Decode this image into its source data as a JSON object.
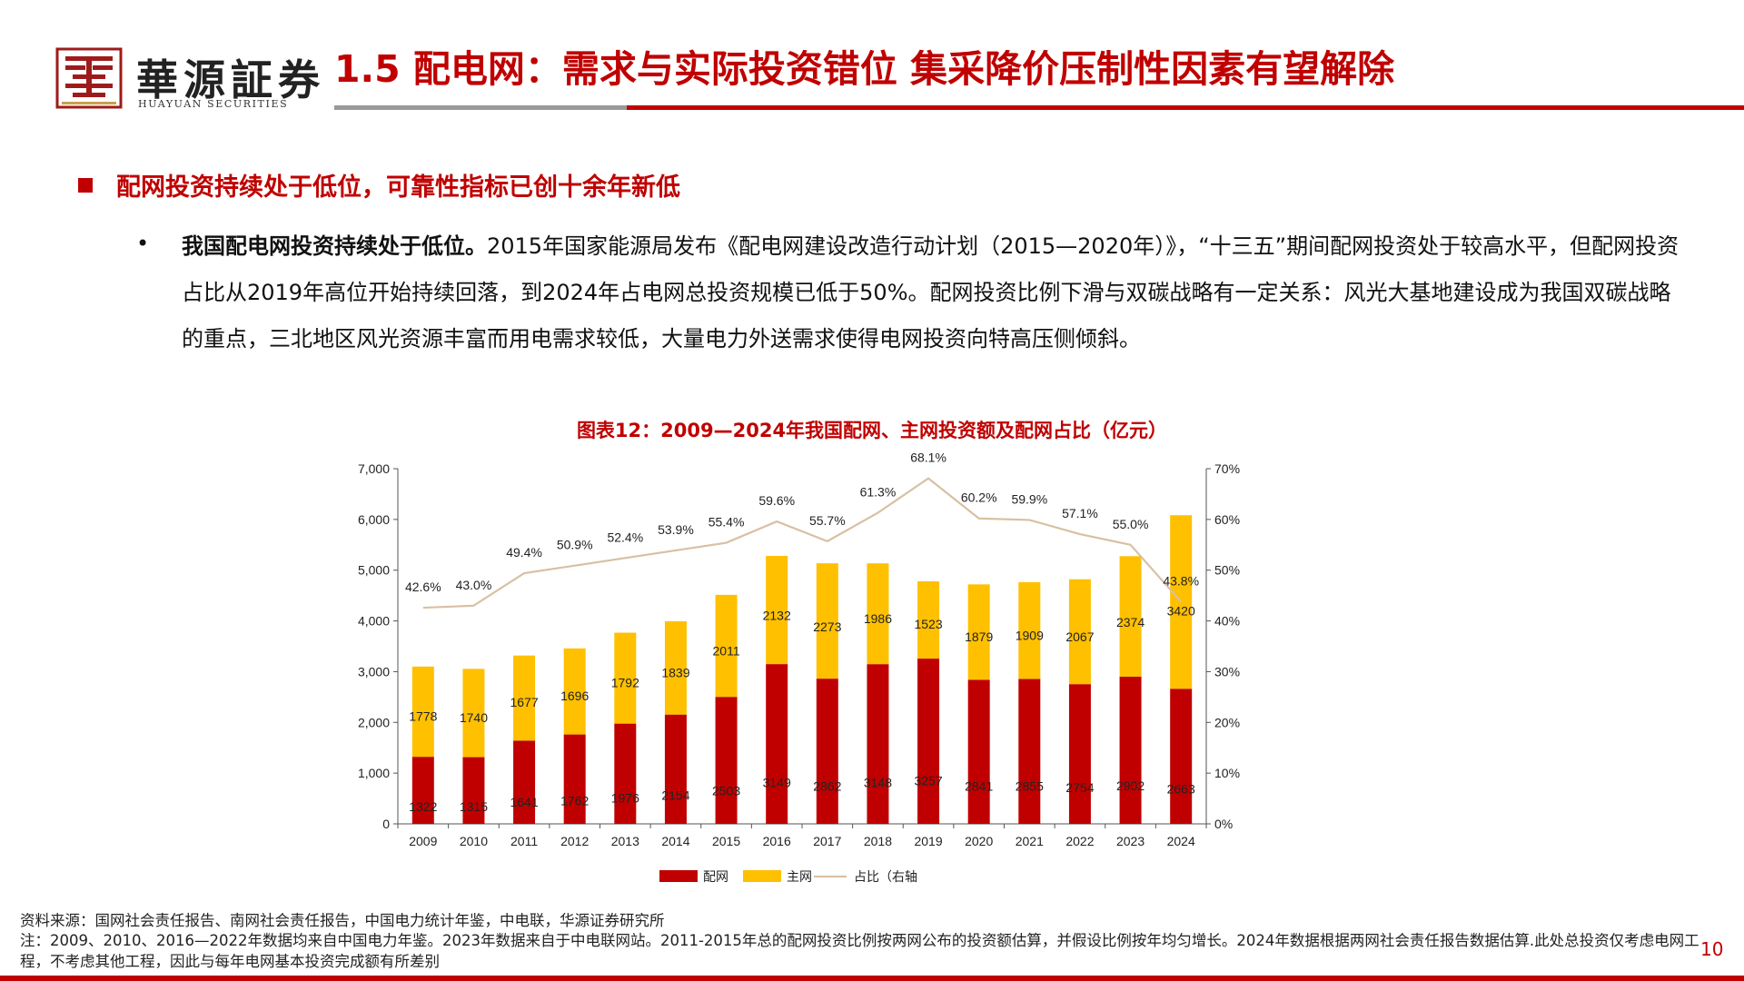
{
  "header": {
    "logo_cn": "華源証券",
    "logo_en": "HUAYUAN SECURITIES",
    "title": "1.5 配电网：需求与实际投资错位 集采降价压制性因素有望解除"
  },
  "section": {
    "heading": "配网投资持续处于低位，可靠性指标已创十余年新低",
    "bullet_lead": "我国配电网投资持续处于低位。",
    "bullet_body": "2015年国家能源局发布《配电网建设改造行动计划（2015—2020年）》，“十三五”期间配网投资处于较高水平，但配网投资占比从2019年高位开始持续回落，到2024年占电网总投资规模已低于50%。配网投资比例下滑与双碳战略有一定关系：风光大基地建设成为我国双碳战略的重点，三北地区风光资源丰富而用电需求较低，大量电力外送需求使得电网投资向特高压侧倾斜。"
  },
  "chart_data": {
    "type": "bar",
    "stacked": true,
    "title": "图表12：2009—2024年我国配网、主网投资额及配网占比（亿元）",
    "categories": [
      "2009",
      "2010",
      "2011",
      "2012",
      "2013",
      "2014",
      "2015",
      "2016",
      "2017",
      "2018",
      "2019",
      "2020",
      "2021",
      "2022",
      "2023",
      "2024"
    ],
    "series": [
      {
        "name": "配网",
        "kind": "bar",
        "color": "#C00000",
        "values": [
          1322,
          1315,
          1641,
          1762,
          1976,
          2154,
          2503,
          3149,
          2862,
          3148,
          3257,
          2841,
          2855,
          2754,
          2902,
          2663
        ]
      },
      {
        "name": "主网",
        "kind": "bar",
        "color": "#FFC000",
        "values": [
          1778,
          1740,
          1677,
          1696,
          1792,
          1839,
          2011,
          2132,
          2273,
          1986,
          1523,
          1879,
          1909,
          2067,
          2374,
          3420
        ]
      },
      {
        "name": "占比（右轴",
        "kind": "line",
        "axis": "right",
        "color": "#D9C0A3",
        "values": [
          42.6,
          43.0,
          49.4,
          50.9,
          52.4,
          53.9,
          55.4,
          59.6,
          55.7,
          61.3,
          68.1,
          60.2,
          59.9,
          57.1,
          55.0,
          43.8
        ]
      }
    ],
    "ratio_labels": [
      "42.6%",
      "43.0%",
      "49.4%",
      "50.9%",
      "52.4%",
      "53.9%",
      "55.4%",
      "59.6%",
      "55.7%",
      "61.3%",
      "68.1%",
      "60.2%",
      "59.9%",
      "57.1%",
      "55.0%",
      "43.8%"
    ],
    "ylim": [
      0,
      7000
    ],
    "y_ticks": [
      "0",
      "1,000",
      "2,000",
      "3,000",
      "4,000",
      "5,000",
      "6,000",
      "7,000"
    ],
    "y2lim": [
      0,
      70
    ],
    "y2_ticks": [
      "0%",
      "10%",
      "20%",
      "30%",
      "40%",
      "50%",
      "60%",
      "70%"
    ],
    "legend_position": "bottom",
    "grid": false
  },
  "footer": {
    "source": "资料来源：国网社会责任报告、南网社会责任报告，中国电力统计年鉴，中电联，华源证券研究所",
    "note": "注：2009、2010、2016—2022年数据均来自中国电力年鉴。2023年数据来自于中电联网站。2011-2015年总的配网投资比例按两网公布的投资额估算，并假设比例按年均匀增长。2024年数据根据两网社会责任报告数据估算.此处总投资仅考虑电网工程，不考虑其他工程，因此与每年电网基本投资完成额有所差别",
    "page": "10"
  }
}
